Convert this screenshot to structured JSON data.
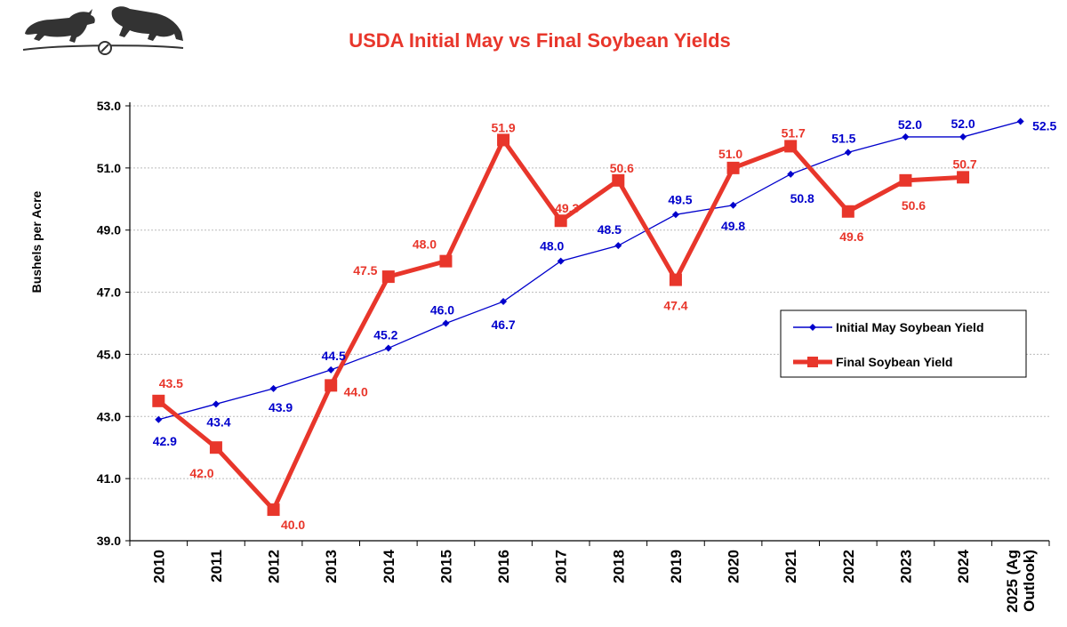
{
  "colors": {
    "initial": "#0000CC",
    "final": "#E8362B",
    "title": "#E8362B",
    "grid": "#BBBBBB"
  },
  "logo": {
    "name": "bull-and-bear-logo"
  },
  "chart_data": {
    "type": "line",
    "title": "USDA Initial May vs Final Soybean Yields",
    "ylabel": "Bushels per Acre",
    "xlabel": "",
    "ylim": [
      39.0,
      53.0
    ],
    "yticks": [
      "39.0",
      "41.0",
      "43.0",
      "45.0",
      "47.0",
      "49.0",
      "51.0",
      "53.0"
    ],
    "grid": "horizontal dotted",
    "legend_position": "right-middle",
    "categories": [
      [
        "2010"
      ],
      [
        "2011"
      ],
      [
        "2012"
      ],
      [
        "2013"
      ],
      [
        "2014"
      ],
      [
        "2015"
      ],
      [
        "2016"
      ],
      [
        "2017"
      ],
      [
        "2018"
      ],
      [
        "2019"
      ],
      [
        "2020"
      ],
      [
        "2021"
      ],
      [
        "2022"
      ],
      [
        "2023"
      ],
      [
        "2024"
      ],
      [
        "2025 (Ag",
        "Outlook)"
      ]
    ],
    "series": [
      {
        "name": "Initial May Soybean Yield",
        "marker": "diamond",
        "values": [
          42.9,
          43.4,
          43.9,
          44.5,
          45.2,
          46.0,
          46.7,
          48.0,
          48.5,
          49.5,
          49.8,
          50.8,
          51.5,
          52.0,
          52.0,
          52.5
        ],
        "labels": [
          "42.9",
          "43.4",
          "43.9",
          "44.5",
          "45.2",
          "46.0",
          "46.7",
          "48.0",
          "48.5",
          "49.5",
          "49.8",
          "50.8",
          "51.5",
          "52.0",
          "52.0",
          "52.5"
        ]
      },
      {
        "name": "Final Soybean Yield",
        "marker": "square",
        "values": [
          43.5,
          42.0,
          40.0,
          44.0,
          47.5,
          48.0,
          51.9,
          49.3,
          50.6,
          47.4,
          51.0,
          51.7,
          49.6,
          50.6,
          50.7,
          null
        ],
        "labels": [
          "43.5",
          "42.0",
          "40.0",
          "44.0",
          "47.5",
          "48.0",
          "51.9",
          "49.3",
          "50.6",
          "47.4",
          "51.0",
          "51.7",
          "49.6",
          "50.6",
          "50.7",
          ""
        ]
      }
    ]
  }
}
